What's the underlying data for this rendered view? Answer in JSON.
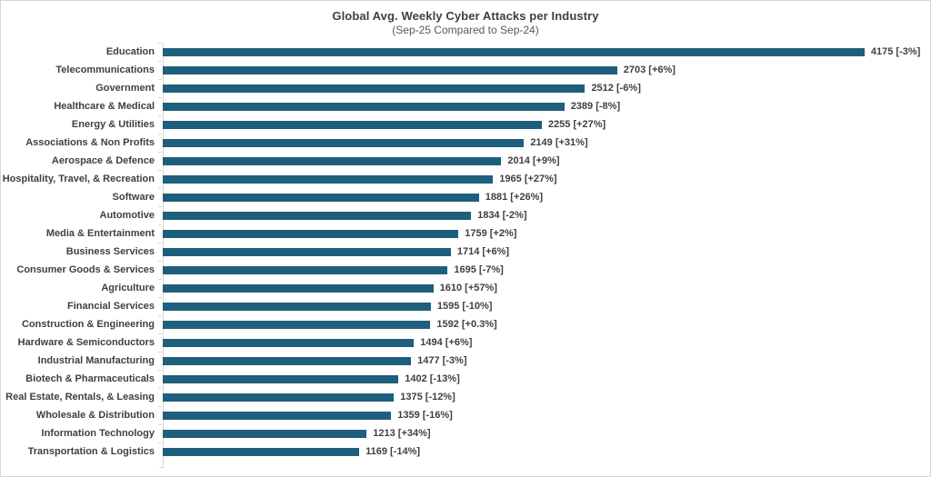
{
  "chart_data": {
    "type": "bar",
    "orientation": "horizontal",
    "title": "Global Avg. Weekly Cyber Attacks per Industry",
    "subtitle": "(Sep-25 Compared to Sep-24)",
    "categories": [
      "Education",
      "Telecommunications",
      "Government",
      "Healthcare & Medical",
      "Energy & Utilities",
      "Associations & Non Profits",
      "Aerospace & Defence",
      "Hospitality, Travel, & Recreation",
      "Software",
      "Automotive",
      "Media & Entertainment",
      "Business Services",
      "Consumer Goods & Services",
      "Agriculture",
      "Financial Services",
      "Construction & Engineering",
      "Hardware & Semiconductors",
      "Industrial Manufacturing",
      "Biotech & Pharmaceuticals",
      "Real Estate, Rentals, & Leasing",
      "Wholesale & Distribution",
      "Information Technology",
      "Transportation & Logistics"
    ],
    "values": [
      4175,
      2703,
      2512,
      2389,
      2255,
      2149,
      2014,
      1965,
      1881,
      1834,
      1759,
      1714,
      1695,
      1610,
      1595,
      1592,
      1494,
      1477,
      1402,
      1375,
      1359,
      1213,
      1169
    ],
    "changes": [
      "-3%",
      "+6%",
      "-6%",
      "-8%",
      "+27%",
      "+31%",
      "+9%",
      "+27%",
      "+26%",
      "-2%",
      "+2%",
      "+6%",
      "-7%",
      "+57%",
      "-10%",
      "+0.3%",
      "+6%",
      "-3%",
      "-13%",
      "-12%",
      "-16%",
      "+34%",
      "-14%"
    ],
    "value_label_format": "{value} [{change}]",
    "xlim": [
      0,
      4500
    ],
    "bar_color": "#1E5F7E",
    "grid": false,
    "legend": false,
    "axis_color": "#d9d9d9"
  }
}
